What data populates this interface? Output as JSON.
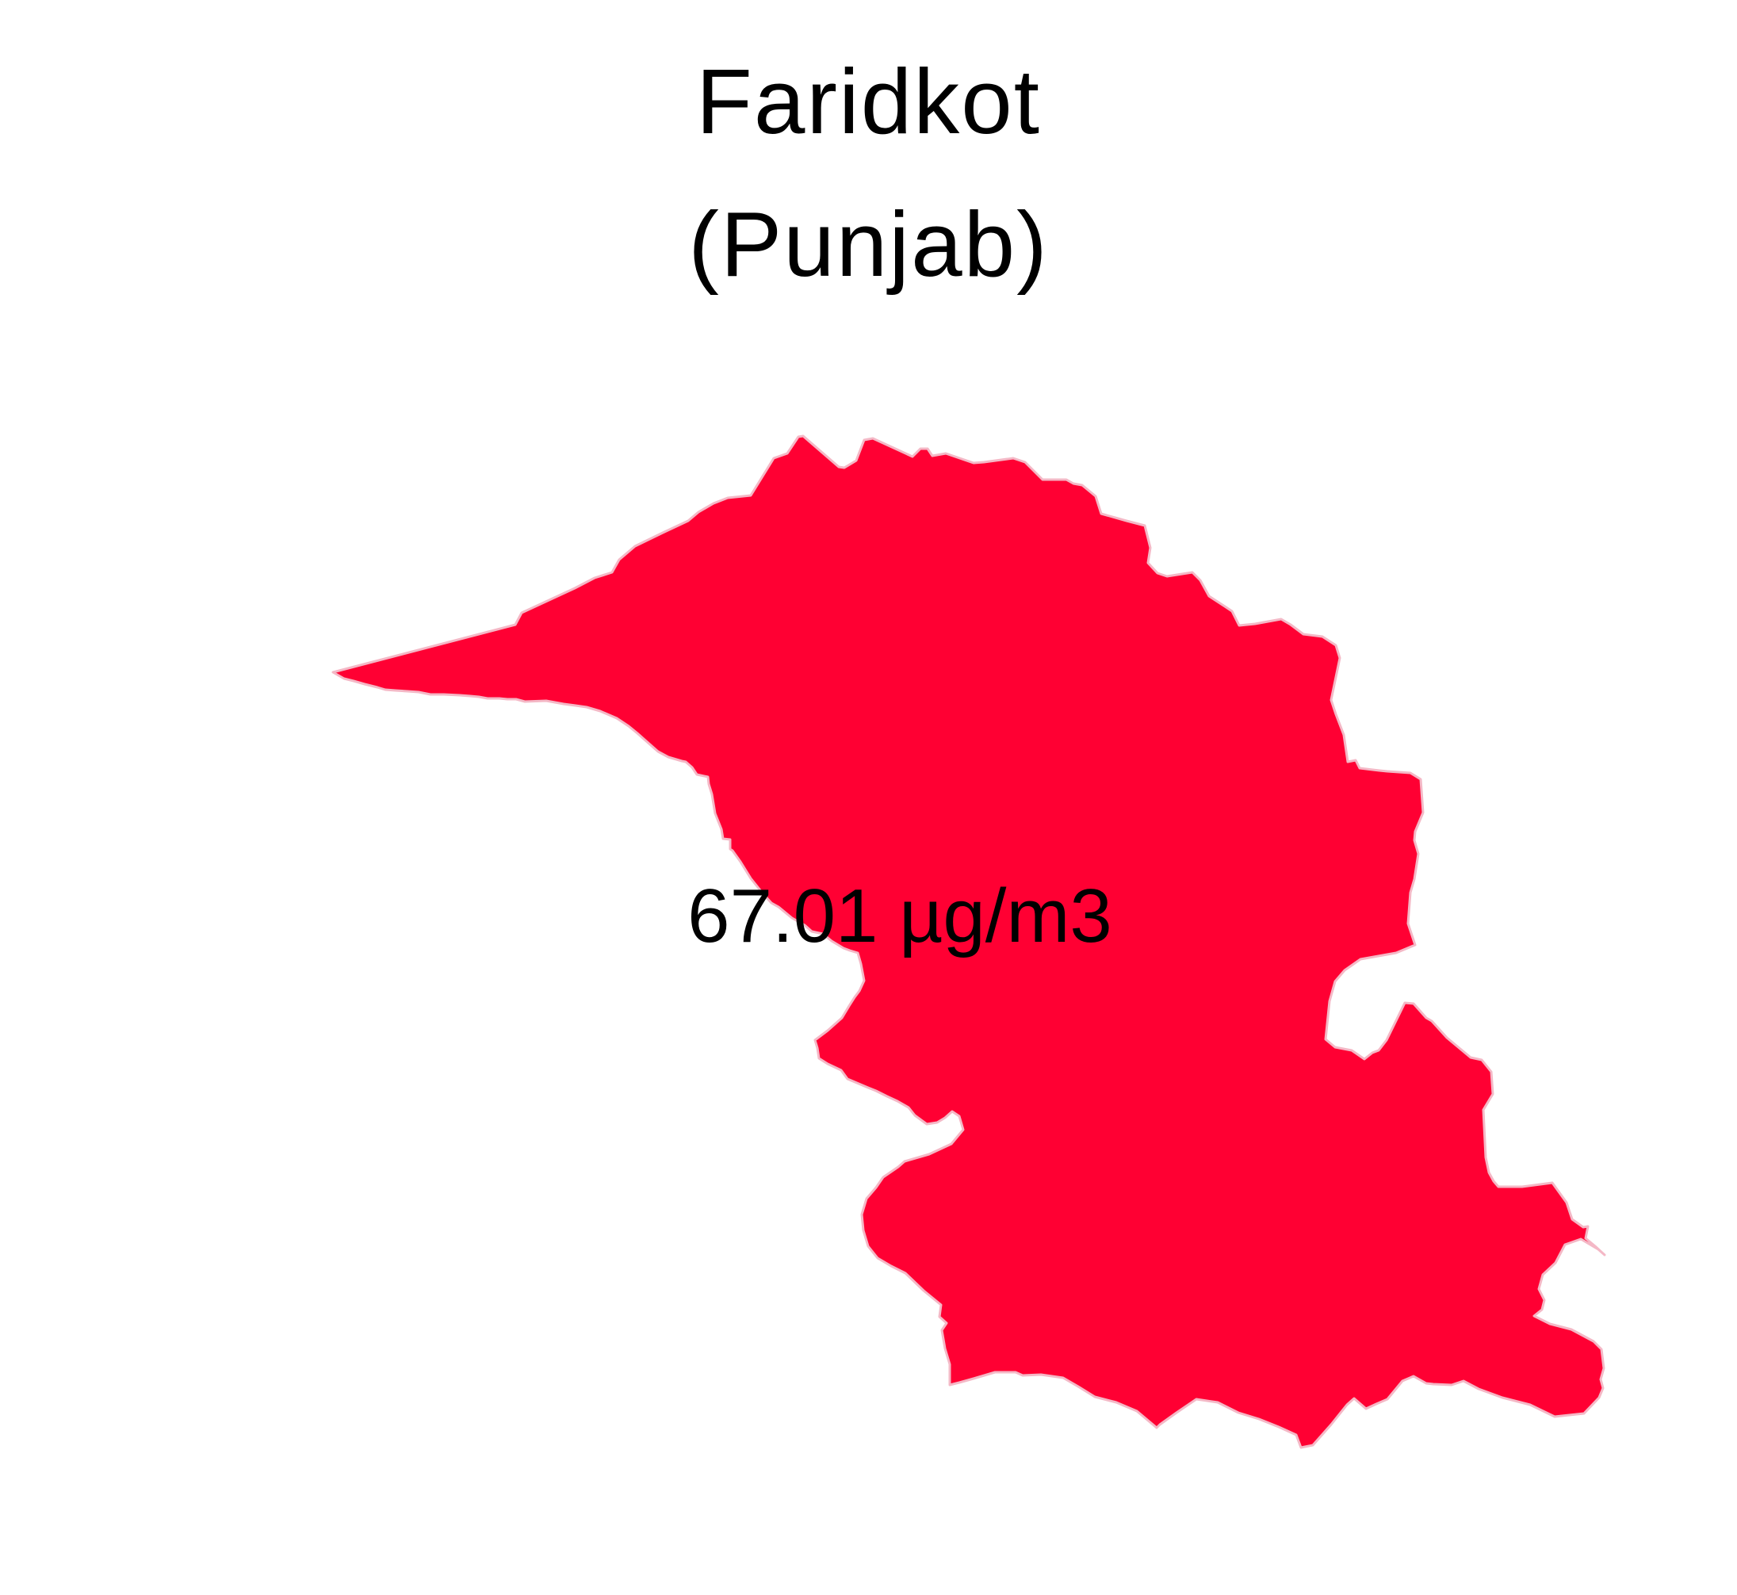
{
  "map": {
    "title_line1": "Faridkot",
    "title_line2": "(Punjab)",
    "region": {
      "name": "Faridkot",
      "value_label": "67.01 µg/m3",
      "value": 67.01,
      "unit": "µg/m3",
      "fill_color": "#ff0033"
    }
  }
}
